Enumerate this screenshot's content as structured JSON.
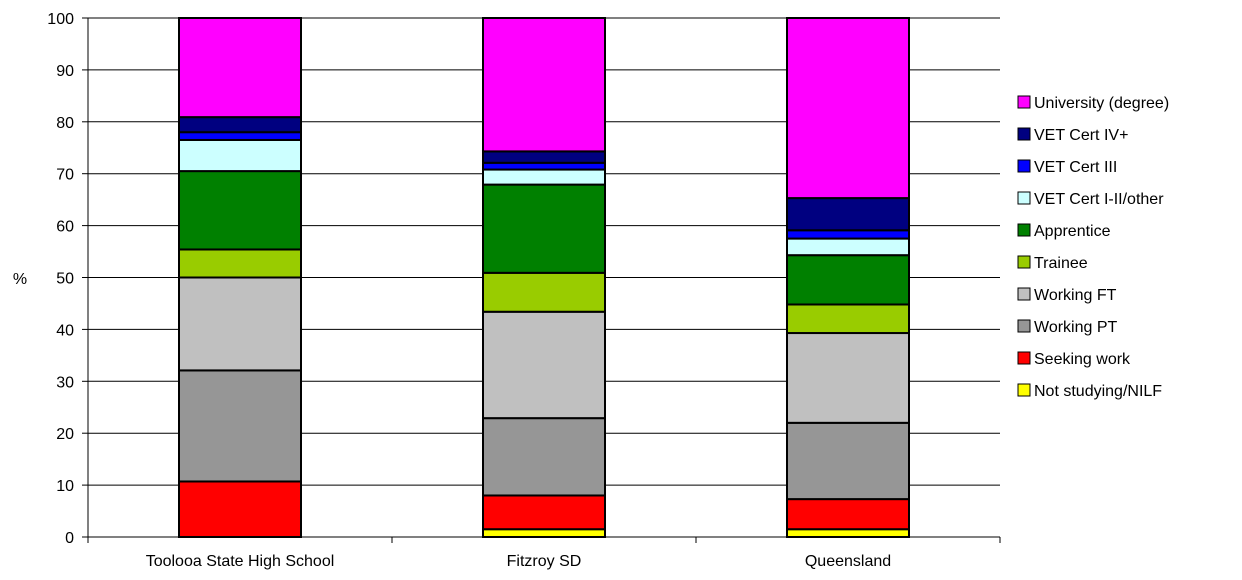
{
  "chart_data": {
    "type": "bar",
    "stacked": true,
    "title": "",
    "xlabel": "",
    "ylabel": "%",
    "ylim": [
      0,
      100
    ],
    "yticks": [
      0,
      10,
      20,
      30,
      40,
      50,
      60,
      70,
      80,
      90,
      100
    ],
    "grid": true,
    "legend_position": "right",
    "categories": [
      "Toolooa State High School",
      "Fitzroy SD",
      "Queensland"
    ],
    "series": [
      {
        "name": "Not studying/NILF",
        "color": "#ffff00",
        "values": [
          0.0,
          1.5,
          1.5
        ]
      },
      {
        "name": "Seeking work",
        "color": "#ff0000",
        "values": [
          10.7,
          6.5,
          5.8
        ]
      },
      {
        "name": "Working PT",
        "color": "#969696",
        "values": [
          21.4,
          14.9,
          14.7
        ]
      },
      {
        "name": "Working FT",
        "color": "#c0c0c0",
        "values": [
          17.9,
          20.5,
          17.3
        ]
      },
      {
        "name": "Trainee",
        "color": "#99cc00",
        "values": [
          5.4,
          7.5,
          5.5
        ]
      },
      {
        "name": "Apprentice",
        "color": "#008000",
        "values": [
          15.1,
          17.0,
          9.5
        ]
      },
      {
        "name": "VET Cert I-II/other",
        "color": "#ccffff",
        "values": [
          6.0,
          2.9,
          3.2
        ]
      },
      {
        "name": "VET Cert III",
        "color": "#0000ff",
        "values": [
          1.5,
          1.3,
          1.6
        ]
      },
      {
        "name": "VET Cert IV+",
        "color": "#000080",
        "values": [
          2.9,
          2.2,
          6.2
        ]
      },
      {
        "name": "University (degree)",
        "color": "#ff00ff",
        "values": [
          19.1,
          25.7,
          34.7
        ]
      }
    ]
  }
}
